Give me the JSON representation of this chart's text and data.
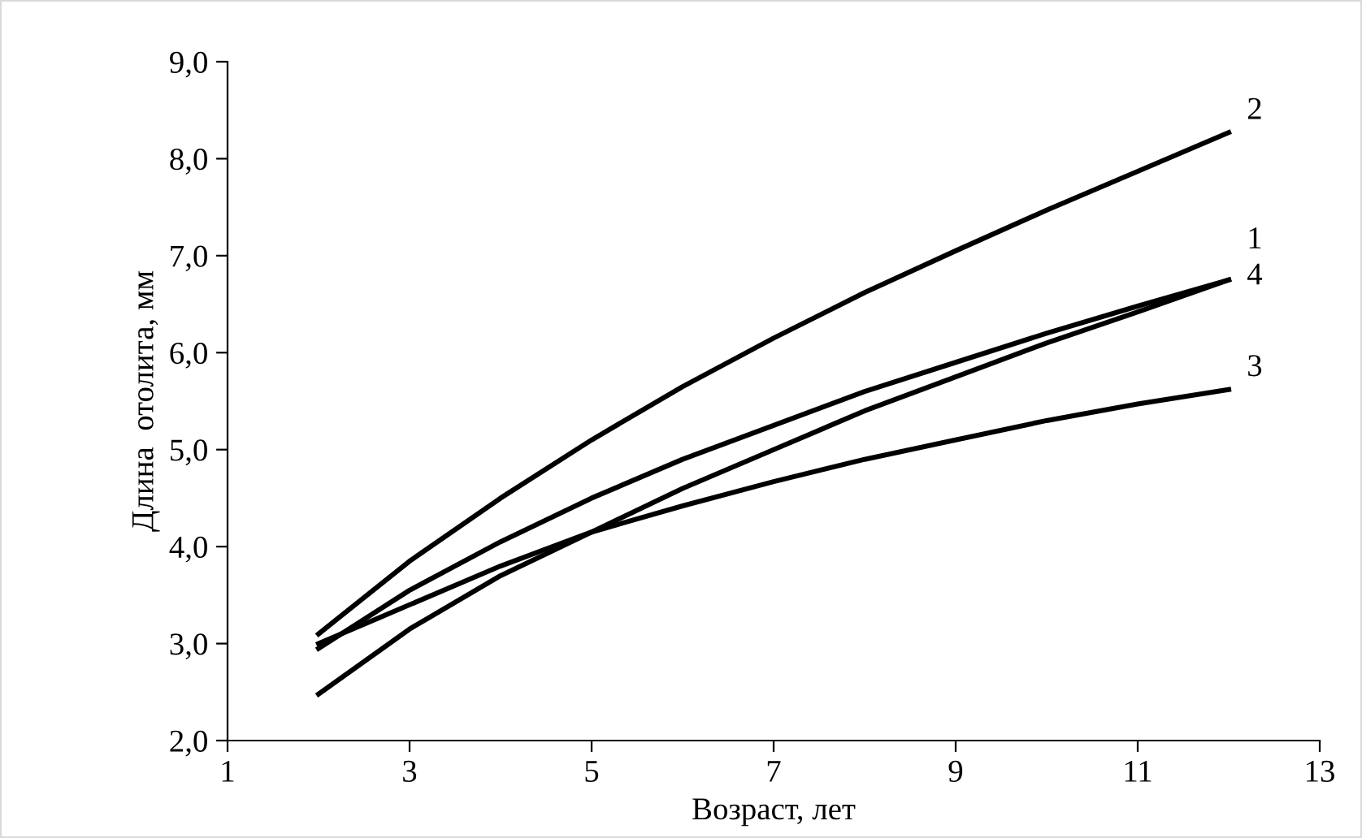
{
  "chart_data": {
    "type": "line",
    "xlabel": "Возраст, лет",
    "ylabel": "Длина  отолита, мм",
    "xlim": [
      1,
      13
    ],
    "xticks": [
      1,
      3,
      5,
      7,
      9,
      11,
      13
    ],
    "ylim": [
      2,
      9
    ],
    "yticks": [
      {
        "value": 2,
        "label": "2,0"
      },
      {
        "value": 3,
        "label": "3,0"
      },
      {
        "value": 4,
        "label": "4,0"
      },
      {
        "value": 5,
        "label": "5,0"
      },
      {
        "value": 6,
        "label": "6,0"
      },
      {
        "value": 7,
        "label": "7,0"
      },
      {
        "value": 8,
        "label": "8,0"
      },
      {
        "value": 9,
        "label": "9,0"
      }
    ],
    "grid": false,
    "marker": "none",
    "line_style": "solid",
    "x": [
      2,
      3,
      4,
      5,
      6,
      7,
      8,
      9,
      10,
      11,
      12
    ],
    "series": [
      {
        "name": "1",
        "color": "#000000",
        "values": [
          2.48,
          3.15,
          3.7,
          4.15,
          4.6,
          5.0,
          5.4,
          5.75,
          6.1,
          6.42,
          6.75
        ]
      },
      {
        "name": "2",
        "color": "#000000",
        "values": [
          3.1,
          3.85,
          4.5,
          5.1,
          5.65,
          6.15,
          6.62,
          7.05,
          7.47,
          7.87,
          8.27
        ]
      },
      {
        "name": "3",
        "color": "#000000",
        "values": [
          3.0,
          3.4,
          3.8,
          4.15,
          4.42,
          4.67,
          4.9,
          5.1,
          5.3,
          5.47,
          5.62
        ]
      },
      {
        "name": "4",
        "color": "#000000",
        "values": [
          2.95,
          3.55,
          4.05,
          4.5,
          4.9,
          5.25,
          5.6,
          5.9,
          6.2,
          6.48,
          6.75
        ]
      }
    ]
  }
}
